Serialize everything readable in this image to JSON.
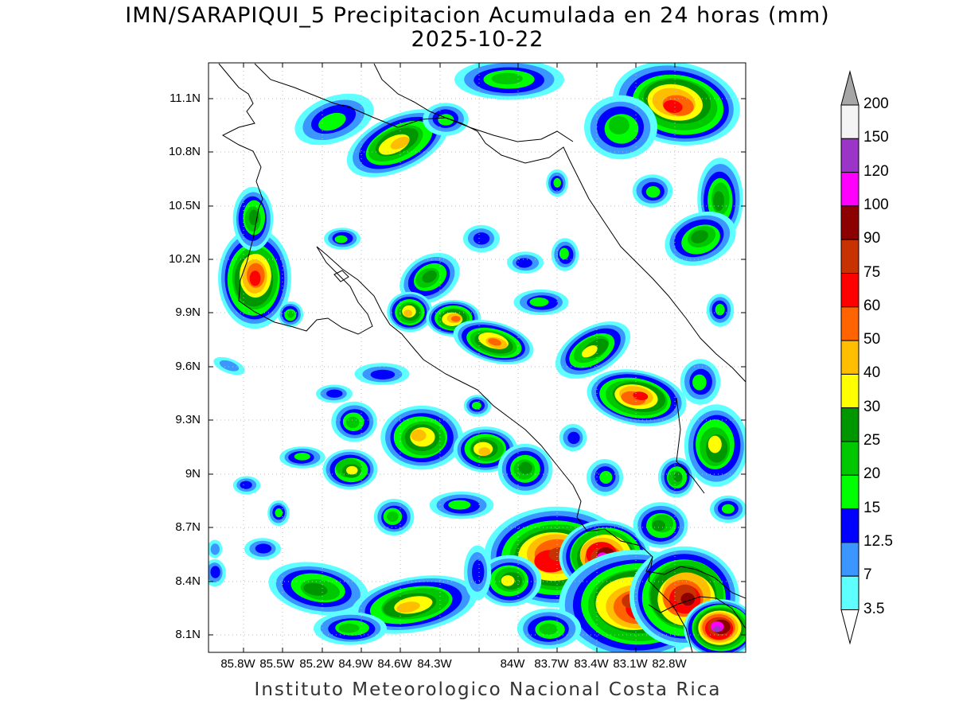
{
  "title": "IMN/SARAPIQUI_5 Precipitacion Acumulada en 24 horas (mm)",
  "date": "2025-10-22",
  "footer": "Instituto Meteorologico Nacional Costa Rica",
  "lat_labels": [
    "11.1N",
    "10.8N",
    "10.5N",
    "10.2N",
    "9.9N",
    "9.6N",
    "9.3N",
    "9N",
    "8.7N",
    "8.4N",
    "8.1N"
  ],
  "lon_labels": [
    "85.8W",
    "85.5W",
    "85.2W",
    "84.9W",
    "84.6W",
    "84.3W",
    "84W",
    "83.7W",
    "83.4W",
    "83.1W",
    "82.8W"
  ],
  "colorbar": {
    "labels": [
      "200",
      "150",
      "120",
      "100",
      "90",
      "75",
      "60",
      "50",
      "40",
      "30",
      "25",
      "20",
      "15",
      "12.5",
      "7",
      "3.5"
    ],
    "colors": [
      "#f4f4f4",
      "#9a35c8",
      "#ff00ff",
      "#8c0000",
      "#c83200",
      "#ff0000",
      "#ff6400",
      "#ffbe00",
      "#ffff00",
      "#009600",
      "#00c800",
      "#00ff00",
      "#0000ff",
      "#3c96ff",
      "#5effff"
    ],
    "over_color": "#a6a6a6"
  }
}
